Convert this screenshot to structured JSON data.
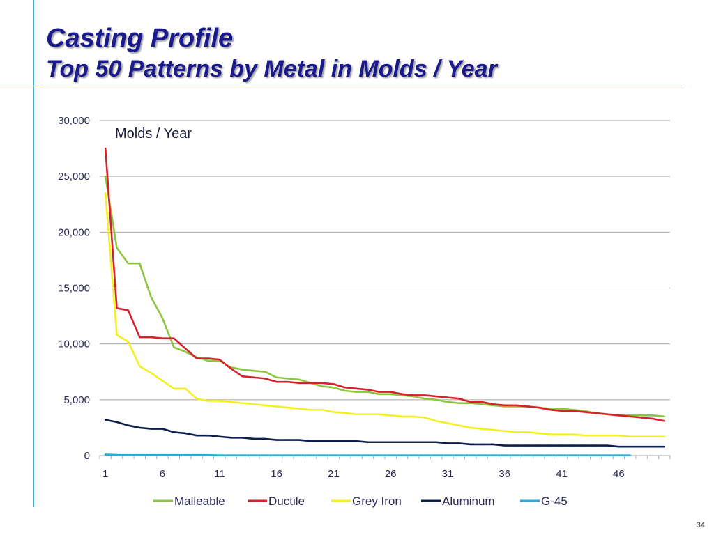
{
  "slide": {
    "title": "Casting Profile",
    "subtitle": "Top 50 Patterns by Metal in Molds / Year",
    "page_number": "34"
  },
  "colors": {
    "title": "#1a1a8c",
    "rule": "#4aa7d6",
    "grid": "#a6a6a6"
  },
  "chart_data": {
    "type": "line",
    "title": "",
    "annotation": "Molds / Year",
    "xlabel": "",
    "ylabel": "",
    "ylim": [
      0,
      30000
    ],
    "xlim": [
      1,
      50
    ],
    "grid": true,
    "legend_position": "bottom",
    "y_ticks": [
      "0",
      "5,000",
      "10,000",
      "15,000",
      "20,000",
      "25,000",
      "30,000"
    ],
    "y_tick_values": [
      0,
      5000,
      10000,
      15000,
      20000,
      25000,
      30000
    ],
    "x_ticks": [
      "1",
      "6",
      "11",
      "16",
      "21",
      "26",
      "31",
      "36",
      "41",
      "46"
    ],
    "x_tick_values": [
      1,
      6,
      11,
      16,
      21,
      26,
      31,
      36,
      41,
      46
    ],
    "series": [
      {
        "name": "Malleable",
        "color": "#8cc63e",
        "x": [
          1,
          2,
          3,
          4,
          5,
          6,
          7,
          8,
          9,
          10,
          11,
          12,
          13,
          14,
          15,
          16,
          17,
          18,
          19,
          20,
          21,
          22,
          23,
          24,
          25,
          26,
          27,
          28,
          29,
          30,
          31,
          32,
          33,
          34,
          35,
          36,
          37,
          38,
          39,
          40,
          41,
          42,
          43,
          44,
          45,
          46,
          47,
          48,
          49,
          50
        ],
        "values": [
          25000,
          18600,
          17200,
          17200,
          14200,
          12300,
          9700,
          9300,
          8800,
          8500,
          8500,
          7900,
          7700,
          7600,
          7500,
          7000,
          6900,
          6800,
          6500,
          6200,
          6100,
          5800,
          5700,
          5700,
          5500,
          5500,
          5400,
          5300,
          5100,
          5000,
          4800,
          4700,
          4700,
          4600,
          4500,
          4400,
          4400,
          4400,
          4300,
          4200,
          4200,
          4100,
          4000,
          3800,
          3700,
          3600,
          3600,
          3600,
          3600,
          3500
        ]
      },
      {
        "name": "Ductile",
        "color": "#d6202a",
        "x": [
          1,
          2,
          3,
          4,
          5,
          6,
          7,
          8,
          9,
          10,
          11,
          12,
          13,
          14,
          15,
          16,
          17,
          18,
          19,
          20,
          21,
          22,
          23,
          24,
          25,
          26,
          27,
          28,
          29,
          30,
          31,
          32,
          33,
          34,
          35,
          36,
          37,
          38,
          39,
          40,
          41,
          42,
          43,
          44,
          45,
          46,
          47,
          48,
          49,
          50
        ],
        "values": [
          27500,
          13200,
          13000,
          10600,
          10600,
          10500,
          10500,
          9600,
          8700,
          8700,
          8600,
          7800,
          7100,
          7000,
          6900,
          6600,
          6600,
          6500,
          6500,
          6500,
          6400,
          6100,
          6000,
          5900,
          5700,
          5700,
          5500,
          5400,
          5400,
          5300,
          5200,
          5100,
          4800,
          4800,
          4600,
          4500,
          4500,
          4400,
          4300,
          4100,
          4000,
          4000,
          3900,
          3800,
          3700,
          3600,
          3500,
          3400,
          3300,
          3100
        ]
      },
      {
        "name": "Grey Iron",
        "color": "#f3f022",
        "x": [
          1,
          2,
          3,
          4,
          5,
          6,
          7,
          8,
          9,
          10,
          11,
          12,
          13,
          14,
          15,
          16,
          17,
          18,
          19,
          20,
          21,
          22,
          23,
          24,
          25,
          26,
          27,
          28,
          29,
          30,
          31,
          32,
          33,
          34,
          35,
          36,
          37,
          38,
          39,
          40,
          41,
          42,
          43,
          44,
          45,
          46,
          47,
          48,
          49,
          50
        ],
        "values": [
          23500,
          10800,
          10200,
          8000,
          7400,
          6700,
          6000,
          6000,
          5100,
          4900,
          4900,
          4800,
          4700,
          4600,
          4500,
          4400,
          4300,
          4200,
          4100,
          4100,
          3900,
          3800,
          3700,
          3700,
          3700,
          3600,
          3500,
          3500,
          3400,
          3100,
          2900,
          2700,
          2500,
          2400,
          2300,
          2200,
          2100,
          2100,
          2000,
          1900,
          1900,
          1900,
          1800,
          1800,
          1800,
          1800,
          1700,
          1700,
          1700,
          1700
        ]
      },
      {
        "name": "Aluminum",
        "color": "#0b1f4a",
        "x": [
          1,
          2,
          3,
          4,
          5,
          6,
          7,
          8,
          9,
          10,
          11,
          12,
          13,
          14,
          15,
          16,
          17,
          18,
          19,
          20,
          21,
          22,
          23,
          24,
          25,
          26,
          27,
          28,
          29,
          30,
          31,
          32,
          33,
          34,
          35,
          36,
          37,
          38,
          39,
          40,
          41,
          42,
          43,
          44,
          45,
          46,
          47,
          48,
          49,
          50
        ],
        "values": [
          3200,
          3000,
          2700,
          2500,
          2400,
          2400,
          2100,
          2000,
          1800,
          1800,
          1700,
          1600,
          1600,
          1500,
          1500,
          1400,
          1400,
          1400,
          1300,
          1300,
          1300,
          1300,
          1300,
          1200,
          1200,
          1200,
          1200,
          1200,
          1200,
          1200,
          1100,
          1100,
          1000,
          1000,
          1000,
          900,
          900,
          900,
          900,
          900,
          900,
          900,
          900,
          900,
          900,
          800,
          800,
          800,
          800,
          800
        ]
      },
      {
        "name": "G-45",
        "color": "#22aede",
        "x": [
          1,
          2,
          3,
          4,
          5,
          6,
          7,
          8,
          9,
          10,
          11,
          12,
          13,
          14,
          15,
          16,
          17,
          18,
          19,
          20,
          21,
          22,
          23,
          24,
          25,
          26,
          27,
          28,
          29,
          30,
          31,
          32,
          33,
          34,
          35,
          36,
          37,
          38,
          39,
          40,
          41,
          42,
          43,
          44,
          45,
          46,
          47
        ],
        "values": [
          100,
          60,
          50,
          50,
          50,
          50,
          50,
          50,
          50,
          50,
          20,
          20,
          20,
          20,
          20,
          20,
          20,
          20,
          20,
          20,
          20,
          20,
          20,
          20,
          20,
          20,
          20,
          20,
          20,
          20,
          20,
          20,
          20,
          20,
          20,
          20,
          20,
          20,
          20,
          20,
          20,
          20,
          20,
          20,
          20,
          20,
          20
        ]
      }
    ]
  }
}
